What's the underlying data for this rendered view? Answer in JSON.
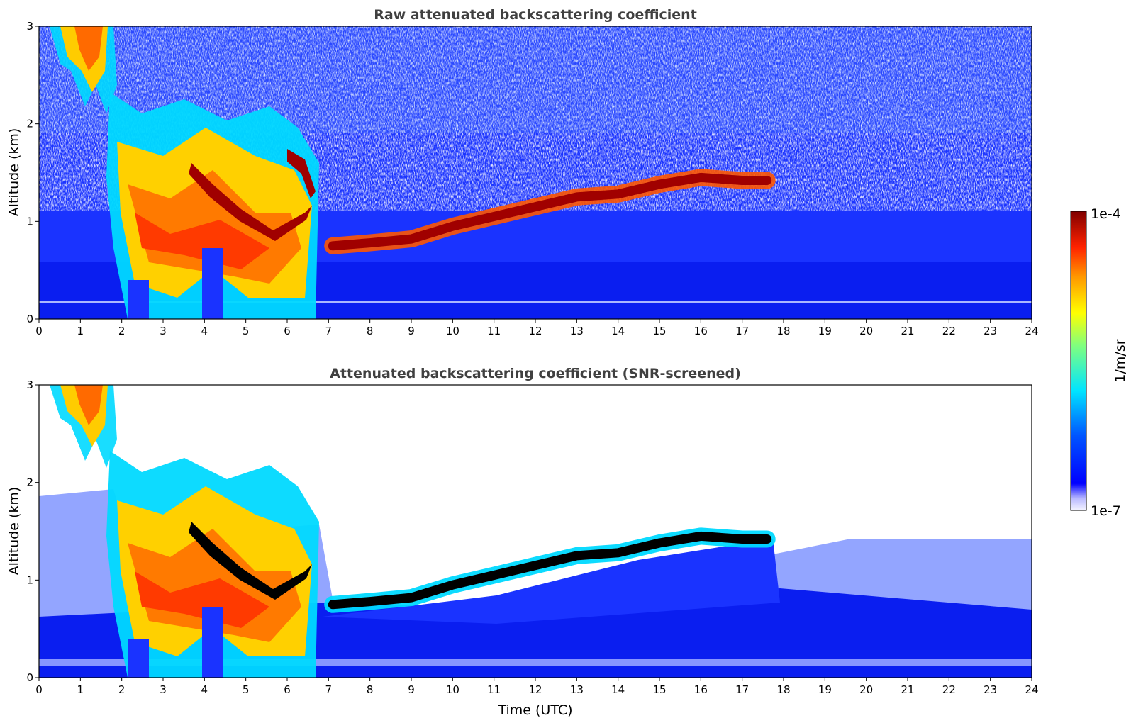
{
  "chart_data": [
    {
      "type": "heatmap",
      "title": "Raw attenuated backscattering coefficient",
      "xlabel": "",
      "ylabel": "Altitude (km)",
      "xlim": [
        0,
        24
      ],
      "ylim": [
        0,
        3
      ],
      "xticks": [
        0,
        1,
        2,
        3,
        4,
        5,
        6,
        7,
        8,
        9,
        10,
        11,
        12,
        13,
        14,
        15,
        16,
        17,
        18,
        19,
        20,
        21,
        22,
        23,
        24
      ],
      "yticks": [
        0,
        1,
        2,
        3
      ],
      "screened": false,
      "layer_altitude_km": {
        "x": [
          7.1,
          8,
          9,
          10,
          11,
          12,
          13,
          14,
          15,
          16,
          17,
          17.6
        ],
        "y": [
          0.75,
          0.78,
          0.82,
          0.95,
          1.05,
          1.15,
          1.25,
          1.28,
          1.38,
          1.45,
          1.42,
          1.42
        ]
      }
    },
    {
      "type": "heatmap",
      "title": "Attenuated backscattering coefficient (SNR-screened)",
      "xlabel": "Time (UTC)",
      "ylabel": "Altitude (km)",
      "xlim": [
        0,
        24
      ],
      "ylim": [
        0,
        3
      ],
      "xticks": [
        0,
        1,
        2,
        3,
        4,
        5,
        6,
        7,
        8,
        9,
        10,
        11,
        12,
        13,
        14,
        15,
        16,
        17,
        18,
        19,
        20,
        21,
        22,
        23,
        24
      ],
      "yticks": [
        0,
        1,
        2,
        3
      ],
      "screened": true,
      "layer_altitude_km": {
        "x": [
          7.1,
          8,
          9,
          10,
          11,
          12,
          13,
          14,
          15,
          16,
          17,
          17.6
        ],
        "y": [
          0.75,
          0.78,
          0.82,
          0.95,
          1.05,
          1.15,
          1.25,
          1.28,
          1.38,
          1.45,
          1.42,
          1.42
        ]
      }
    }
  ],
  "colorbar": {
    "label": "1/m/sr",
    "max_label": "1e-4",
    "min_label": "1e-7",
    "colors": [
      "#ffffff",
      "#0000ff",
      "#00e5ff",
      "#ffff00",
      "#ff7f00",
      "#800000"
    ]
  }
}
